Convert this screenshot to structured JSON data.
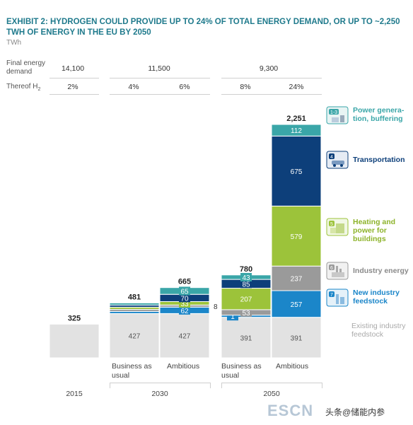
{
  "title": "EXHIBIT 2: HYDROGEN COULD PROVIDE UP TO 24% OF TOTAL ENERGY DEMAND, OR UP TO ~2,250 TWH OF ENERGY IN THE EU BY 2050",
  "unit": "TWh",
  "table": {
    "final_energy_label_1": "Final energy",
    "final_energy_label_2": "demand",
    "thereof_label": "Thereof H",
    "thereof_sub": "2",
    "final_2015": "14,100",
    "final_2030": "11,500",
    "final_2050": "9,300",
    "h2_2015": "2%",
    "h2_2030_bau": "4%",
    "h2_2030_amb": "6%",
    "h2_2050_bau": "8%",
    "h2_2050_amb": "24%"
  },
  "categories": {
    "bau_2030_1": "Business as",
    "bau_2030_2": "usual",
    "amb_2030": "Ambitious",
    "bau_2050_1": "Business as",
    "bau_2050_2": "usual",
    "amb_2050": "Ambitious",
    "y2015": "2015",
    "y2030": "2030",
    "y2050": "2050"
  },
  "legend": [
    {
      "number": "1-3",
      "label": "Power genera-tion, buffering",
      "color": "#3aa6a8",
      "icon": "power-plant-icon"
    },
    {
      "number": "4",
      "label": "Transportation",
      "color": "#0d3f7a",
      "icon": "transport-icon"
    },
    {
      "number": "5",
      "label": "Heating and power for buildings",
      "color": "#9cc33a",
      "icon": "building-icon"
    },
    {
      "number": "6",
      "label": "Industry energy",
      "color": "#9a9a9a",
      "icon": "industry-icon"
    },
    {
      "number": "7",
      "label": "New industry feedstock",
      "color": "#1b86c9",
      "icon": "feedstock-icon"
    },
    {
      "number": "",
      "label": "Existing industry feedstock",
      "color": "#e2e2e2",
      "icon": ""
    }
  ],
  "watermark": "ESCN",
  "watermark2": "头条@储能内参",
  "chart_data": {
    "type": "bar",
    "stacked": true,
    "bars": [
      "2015",
      "2030 Business as usual",
      "2030 Ambitious",
      "2050 Business as usual",
      "2050 Ambitious"
    ],
    "totals": [
      "325",
      "481",
      "665",
      "780",
      "2,251"
    ],
    "total_values": [
      325,
      481,
      665,
      780,
      2251
    ],
    "series": [
      {
        "name": "Existing industry feedstock",
        "color": "#e2e2e2",
        "values": [
          325,
          427,
          427,
          391,
          391
        ],
        "labels": [
          "",
          "427",
          "427",
          "391",
          "391"
        ]
      },
      {
        "name": "New industry feedstock",
        "color": "#1b86c9",
        "values": [
          0,
          5,
          62,
          1,
          257
        ],
        "labels": [
          "",
          "",
          "62",
          "1",
          "257"
        ]
      },
      {
        "name": "Industry energy",
        "color": "#9a9a9a",
        "values": [
          0,
          4,
          8,
          53,
          237
        ],
        "labels": [
          "",
          "",
          "8",
          "53",
          "237"
        ]
      },
      {
        "name": "Heating and power for buildings",
        "color": "#9cc33a",
        "values": [
          0,
          10,
          33,
          207,
          579
        ],
        "labels": [
          "",
          "",
          "33",
          "207",
          "579"
        ]
      },
      {
        "name": "Transportation",
        "color": "#0d3f7a",
        "values": [
          0,
          20,
          70,
          85,
          675
        ],
        "labels": [
          "",
          "",
          "70",
          "85",
          "675"
        ]
      },
      {
        "name": "Power generation, buffering",
        "color": "#3aa6a8",
        "values": [
          0,
          15,
          65,
          43,
          112
        ],
        "labels": [
          "",
          "",
          "65",
          "43",
          "112"
        ]
      }
    ]
  }
}
